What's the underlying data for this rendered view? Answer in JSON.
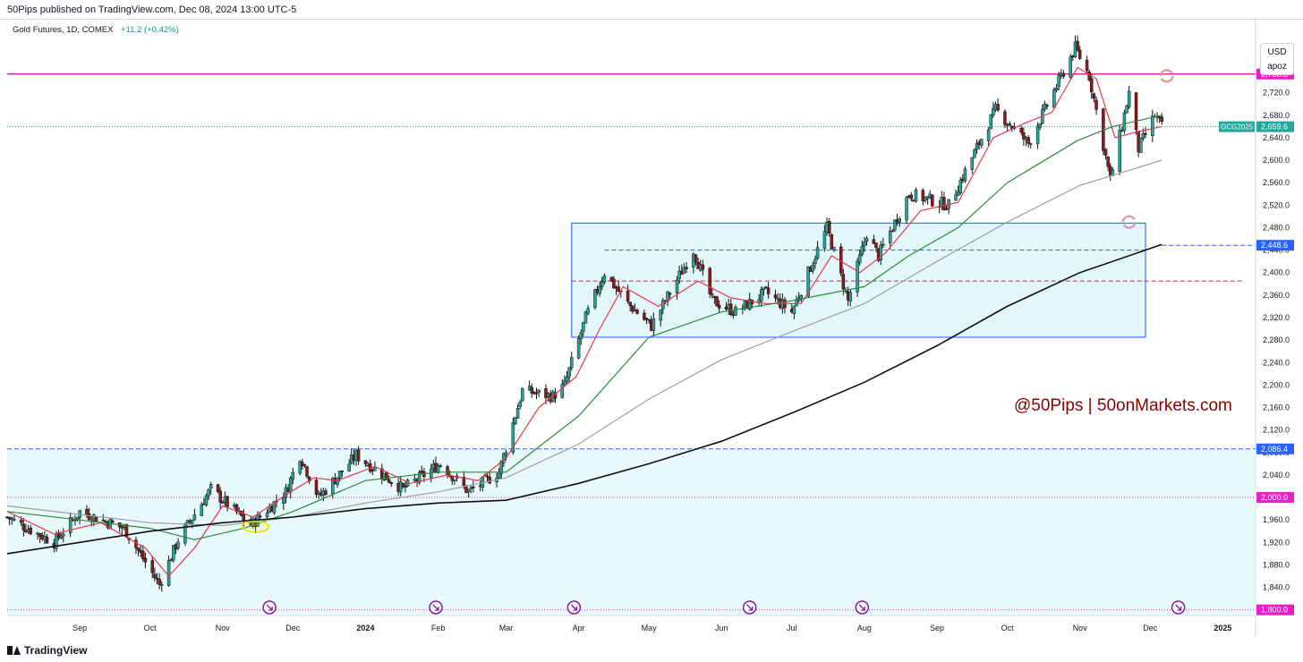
{
  "header": {
    "published": "50Pips published on TradingView.com, Dec 08, 2024 13:00 UTC-5"
  },
  "legend": {
    "symbol": "Gold Futures, 1D, COMEX",
    "change": "+11.2 (+0.42%)"
  },
  "currency": {
    "code": "USD",
    "unit": "apoz"
  },
  "watermark": "@50Pips | 50onMarkets.com",
  "footer": {
    "brand": "TradingView"
  },
  "colors": {
    "up": "#26a69a",
    "down": "#8b1a1a",
    "ema_fast": "#e53950",
    "ma_mid": "#2e8b3a",
    "ma_slow": "#a0a0a0",
    "ma_long": "#111111",
    "range_fill": "#e0f7fa",
    "range_border": "#2962ff",
    "resistance": "#e91ec8",
    "support_dash": "#2962ff",
    "watermark": "#8b0000"
  },
  "chart_data": {
    "type": "candlestick",
    "title": "Gold Futures, 1D, COMEX",
    "ylim": [
      1790,
      2850
    ],
    "yticks": [
      1800,
      1840,
      1880,
      1920,
      1960,
      2000,
      2040,
      2080,
      2120,
      2160,
      2200,
      2240,
      2280,
      2320,
      2360,
      2400,
      2440,
      2480,
      2520,
      2560,
      2600,
      2640,
      2680,
      2720,
      2760
    ],
    "ytick_labels": [
      "1,800.0",
      "1,840.0",
      "1,880.0",
      "1,920.0",
      "1,960.0",
      "2,000.0",
      "2,040.0",
      "2,080.0",
      "2,120.0",
      "2,160.0",
      "2,200.0",
      "2,240.0",
      "2,280.0",
      "2,320.0",
      "2,360.0",
      "2,400.0",
      "2,440.0",
      "2,480.0",
      "2,520.0",
      "2,560.0",
      "2,600.0",
      "2,640.0",
      "2,680.0",
      "2,720.0",
      "2,760.0"
    ],
    "x_range": [
      "2023-08-01",
      "2025-01-15"
    ],
    "xticks": [
      {
        "date": "2023-09-01",
        "label": "Sep"
      },
      {
        "date": "2023-10-01",
        "label": "Oct"
      },
      {
        "date": "2023-11-01",
        "label": "Nov"
      },
      {
        "date": "2023-12-01",
        "label": "Dec"
      },
      {
        "date": "2024-01-01",
        "label": "2024"
      },
      {
        "date": "2024-02-01",
        "label": "Feb"
      },
      {
        "date": "2024-03-01",
        "label": "Mar"
      },
      {
        "date": "2024-04-01",
        "label": "Apr"
      },
      {
        "date": "2024-05-01",
        "label": "May"
      },
      {
        "date": "2024-06-01",
        "label": "Jun"
      },
      {
        "date": "2024-07-01",
        "label": "Jul"
      },
      {
        "date": "2024-08-01",
        "label": "Aug"
      },
      {
        "date": "2024-09-01",
        "label": "Sep"
      },
      {
        "date": "2024-10-01",
        "label": "Oct"
      },
      {
        "date": "2024-11-01",
        "label": "Nov"
      },
      {
        "date": "2024-12-01",
        "label": "Dec"
      },
      {
        "date": "2025-01-01",
        "label": "2025"
      }
    ],
    "price_path": [
      [
        "2023-08-01",
        1965
      ],
      [
        "2023-08-21",
        1920
      ],
      [
        "2023-09-01",
        1975
      ],
      [
        "2023-09-20",
        1945
      ],
      [
        "2023-09-29",
        1885
      ],
      [
        "2023-10-05",
        1845
      ],
      [
        "2023-10-13",
        1925
      ],
      [
        "2023-10-27",
        2015
      ],
      [
        "2023-11-13",
        1950
      ],
      [
        "2023-11-28",
        2010
      ],
      [
        "2023-12-04",
        2075
      ],
      [
        "2023-12-12",
        2000
      ],
      [
        "2023-12-28",
        2075
      ],
      [
        "2024-01-17",
        2015
      ],
      [
        "2024-02-02",
        2060
      ],
      [
        "2024-02-14",
        2010
      ],
      [
        "2024-02-27",
        2045
      ],
      [
        "2024-03-08",
        2190
      ],
      [
        "2024-03-21",
        2180
      ],
      [
        "2024-03-26",
        2200
      ],
      [
        "2024-04-04",
        2320
      ],
      [
        "2024-04-12",
        2400
      ],
      [
        "2024-04-22",
        2345
      ],
      [
        "2024-05-02",
        2305
      ],
      [
        "2024-05-20",
        2440
      ],
      [
        "2024-05-28",
        2350
      ],
      [
        "2024-06-07",
        2330
      ],
      [
        "2024-06-20",
        2365
      ],
      [
        "2024-07-01",
        2330
      ],
      [
        "2024-07-16",
        2480
      ],
      [
        "2024-07-25",
        2350
      ],
      [
        "2024-08-02",
        2470
      ],
      [
        "2024-08-07",
        2430
      ],
      [
        "2024-08-20",
        2540
      ],
      [
        "2024-09-06",
        2520
      ],
      [
        "2024-09-26",
        2690
      ],
      [
        "2024-10-10",
        2630
      ],
      [
        "2024-10-30",
        2800
      ],
      [
        "2024-11-05",
        2750
      ],
      [
        "2024-11-14",
        2565
      ],
      [
        "2024-11-22",
        2720
      ],
      [
        "2024-11-26",
        2620
      ],
      [
        "2024-12-03",
        2680
      ],
      [
        "2024-12-06",
        2660
      ]
    ],
    "series": [
      {
        "name": "EMA fast",
        "points": [
          [
            "2023-08-01",
            1975
          ],
          [
            "2023-08-21",
            1935
          ],
          [
            "2023-09-10",
            1955
          ],
          [
            "2023-09-29",
            1910
          ],
          [
            "2023-10-09",
            1860
          ],
          [
            "2023-10-20",
            1910
          ],
          [
            "2023-11-01",
            1985
          ],
          [
            "2023-11-14",
            1965
          ],
          [
            "2023-11-30",
            2010
          ],
          [
            "2023-12-10",
            2035
          ],
          [
            "2023-12-20",
            2030
          ],
          [
            "2024-01-05",
            2055
          ],
          [
            "2024-01-20",
            2025
          ],
          [
            "2024-02-05",
            2040
          ],
          [
            "2024-02-18",
            2030
          ],
          [
            "2024-03-01",
            2070
          ],
          [
            "2024-03-15",
            2160
          ],
          [
            "2024-03-31",
            2215
          ],
          [
            "2024-04-10",
            2300
          ],
          [
            "2024-04-20",
            2375
          ],
          [
            "2024-05-05",
            2340
          ],
          [
            "2024-05-22",
            2385
          ],
          [
            "2024-06-05",
            2355
          ],
          [
            "2024-06-20",
            2345
          ],
          [
            "2024-07-05",
            2345
          ],
          [
            "2024-07-18",
            2430
          ],
          [
            "2024-07-30",
            2400
          ],
          [
            "2024-08-10",
            2435
          ],
          [
            "2024-08-25",
            2510
          ],
          [
            "2024-09-10",
            2525
          ],
          [
            "2024-09-25",
            2640
          ],
          [
            "2024-10-08",
            2665
          ],
          [
            "2024-10-20",
            2685
          ],
          [
            "2024-10-31",
            2765
          ],
          [
            "2024-11-08",
            2745
          ],
          [
            "2024-11-16",
            2640
          ],
          [
            "2024-11-25",
            2650
          ],
          [
            "2024-12-06",
            2660
          ]
        ]
      },
      {
        "name": "MA mid",
        "points": [
          [
            "2023-08-01",
            1975
          ],
          [
            "2023-09-01",
            1960
          ],
          [
            "2023-10-01",
            1945
          ],
          [
            "2023-10-20",
            1925
          ],
          [
            "2023-11-10",
            1945
          ],
          [
            "2023-12-01",
            1975
          ],
          [
            "2024-01-01",
            2030
          ],
          [
            "2024-02-01",
            2045
          ],
          [
            "2024-03-01",
            2045
          ],
          [
            "2024-03-15",
            2090
          ],
          [
            "2024-04-01",
            2145
          ],
          [
            "2024-05-01",
            2285
          ],
          [
            "2024-06-01",
            2330
          ],
          [
            "2024-07-01",
            2350
          ],
          [
            "2024-08-01",
            2375
          ],
          [
            "2024-08-20",
            2430
          ],
          [
            "2024-09-10",
            2480
          ],
          [
            "2024-10-01",
            2560
          ],
          [
            "2024-10-31",
            2635
          ],
          [
            "2024-11-15",
            2660
          ],
          [
            "2024-12-06",
            2680
          ]
        ]
      },
      {
        "name": "MA slow",
        "points": [
          [
            "2023-08-01",
            1985
          ],
          [
            "2023-10-01",
            1955
          ],
          [
            "2023-11-01",
            1950
          ],
          [
            "2023-12-01",
            1965
          ],
          [
            "2024-01-01",
            1990
          ],
          [
            "2024-02-01",
            2010
          ],
          [
            "2024-03-01",
            2035
          ],
          [
            "2024-04-01",
            2095
          ],
          [
            "2024-05-01",
            2175
          ],
          [
            "2024-06-01",
            2245
          ],
          [
            "2024-07-01",
            2295
          ],
          [
            "2024-08-01",
            2345
          ],
          [
            "2024-09-01",
            2420
          ],
          [
            "2024-10-01",
            2490
          ],
          [
            "2024-11-01",
            2555
          ],
          [
            "2024-12-06",
            2600
          ]
        ]
      },
      {
        "name": "MA long",
        "points": [
          [
            "2023-08-01",
            1900
          ],
          [
            "2023-09-01",
            1920
          ],
          [
            "2023-10-01",
            1940
          ],
          [
            "2023-11-01",
            1955
          ],
          [
            "2023-12-01",
            1965
          ],
          [
            "2024-01-01",
            1980
          ],
          [
            "2024-02-01",
            1990
          ],
          [
            "2024-03-01",
            1995
          ],
          [
            "2024-04-01",
            2025
          ],
          [
            "2024-05-01",
            2060
          ],
          [
            "2024-06-01",
            2100
          ],
          [
            "2024-07-01",
            2150
          ],
          [
            "2024-08-01",
            2205
          ],
          [
            "2024-09-01",
            2270
          ],
          [
            "2024-10-01",
            2340
          ],
          [
            "2024-11-01",
            2400
          ],
          [
            "2024-12-06",
            2450
          ]
        ]
      }
    ],
    "levels": [
      {
        "name": "resistance",
        "value": 2753.3,
        "label": "2,753.3",
        "style": "solid",
        "color": "#e91ec8"
      },
      {
        "name": "last-price",
        "value": 2659.6,
        "label": "2,659.6",
        "tag": "GCG2025",
        "style": "dotted",
        "color": "#26a69a"
      },
      {
        "name": "range-top-support",
        "value": 2448.6,
        "label": "2,448.6",
        "style": "dashed",
        "color": "#2962ff",
        "from": "2024-12-06"
      },
      {
        "name": "breakout-level",
        "value": 2086.4,
        "label": "2,086.4",
        "style": "dashed",
        "color": "#2962ff"
      },
      {
        "name": "round-number",
        "value": 2000.0,
        "label": "2,000.0",
        "style": "dotted",
        "color": "#e91ec8"
      },
      {
        "name": "floor",
        "value": 1800.0,
        "label": "1,800.0",
        "style": "dotted",
        "color": "#e91ec8"
      }
    ],
    "range_box": {
      "from": "2024-03-29",
      "to": "2024-11-29",
      "low": 2285,
      "high": 2488,
      "mid": 2385,
      "top_dash": 2440
    },
    "support_zone": {
      "from": "2023-08-01",
      "to": "2025-01-15",
      "low": 1790,
      "high": 2086.4
    },
    "event_markers": [
      "2023-11-21",
      "2024-01-31",
      "2024-03-30",
      "2024-06-13",
      "2024-07-31",
      "2024-12-13"
    ],
    "sync_icons": [
      {
        "date": "2024-12-08",
        "value": 2750
      },
      {
        "date": "2024-11-22",
        "value": 2490
      }
    ],
    "highlight_ellipse": {
      "date": "2023-11-15",
      "value": 1948
    }
  }
}
